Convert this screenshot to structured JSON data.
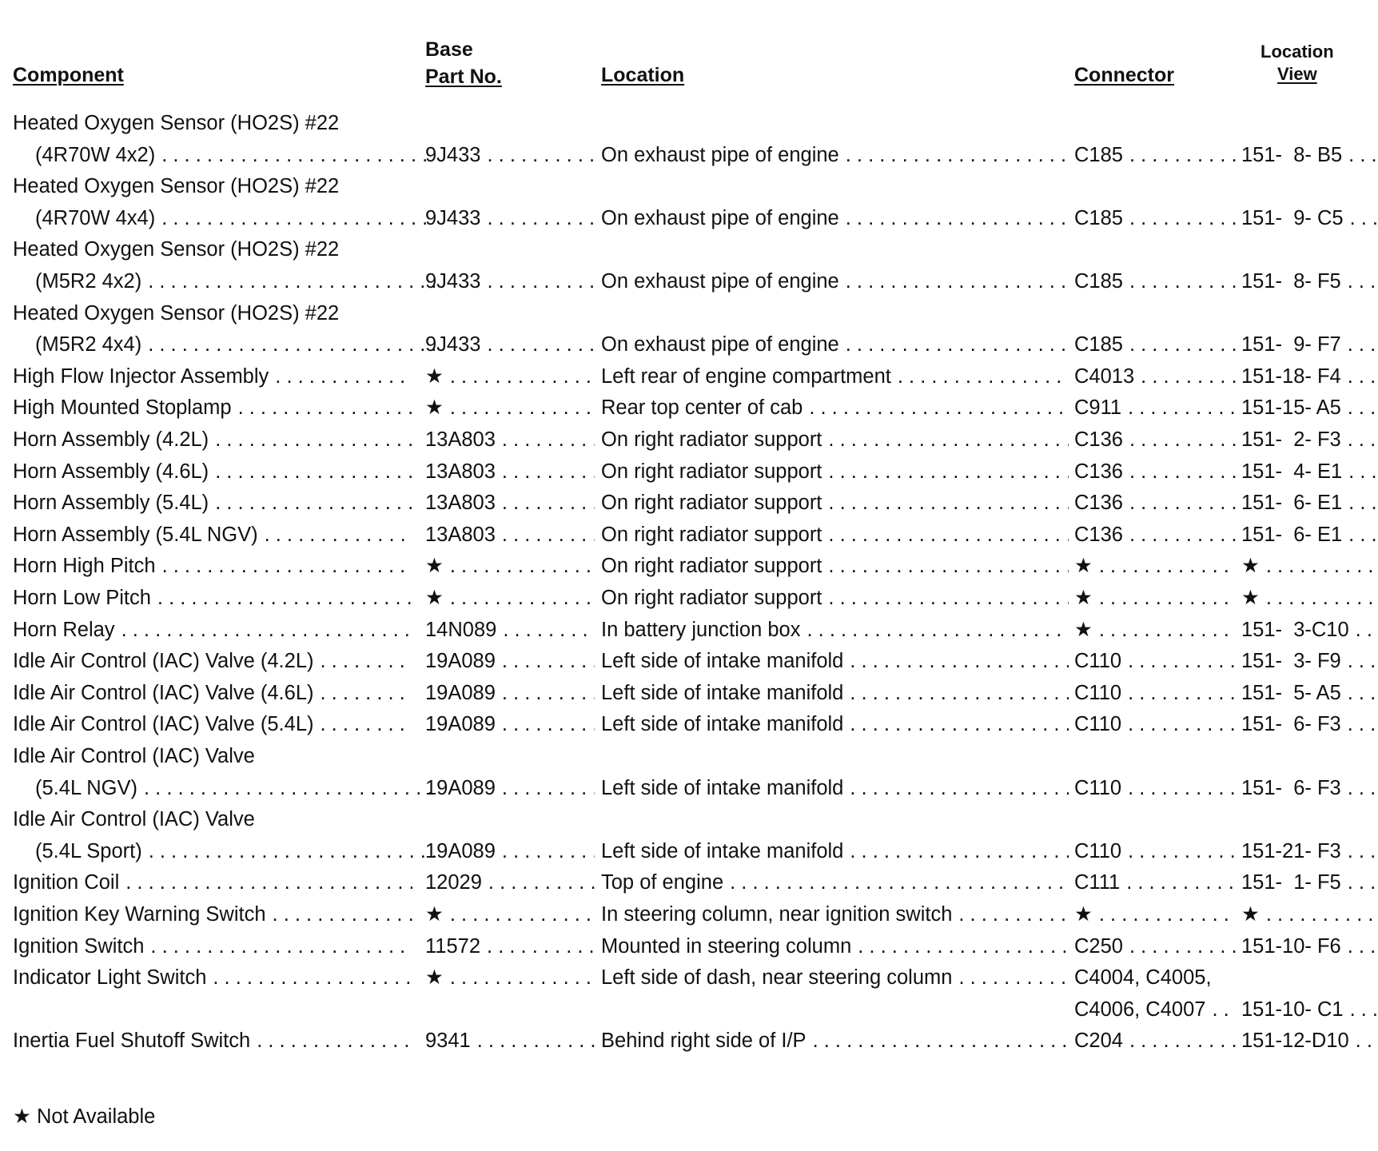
{
  "header": {
    "component": "Component",
    "part_top": "Base",
    "part_bottom": "Part No.",
    "location": "Location",
    "connector": "Connector",
    "view_top": "Location",
    "view_bottom": "View"
  },
  "entries": [
    {
      "component": "Heated Oxygen Sensor (HO2S) #22",
      "component_line2": "(4R70W 4x2)",
      "part": "9J433",
      "location": "On exhaust pipe of engine",
      "connector": "C185",
      "view": "151-  8- B5"
    },
    {
      "component": "Heated Oxygen Sensor (HO2S) #22",
      "component_line2": "(4R70W 4x4)",
      "part": "9J433",
      "location": "On exhaust pipe of engine",
      "connector": "C185",
      "view": "151-  9- C5"
    },
    {
      "component": "Heated Oxygen Sensor (HO2S) #22",
      "component_line2": "(M5R2 4x2)",
      "part": "9J433",
      "location": "On exhaust pipe of engine",
      "connector": "C185",
      "view": "151-  8- F5"
    },
    {
      "component": "Heated Oxygen Sensor (HO2S) #22",
      "component_line2": "(M5R2 4x4)",
      "part": "9J433",
      "location": "On exhaust pipe of engine",
      "connector": "C185",
      "view": "151-  9- F7"
    },
    {
      "component": "High Flow Injector Assembly",
      "part": "★",
      "location": "Left rear of engine compartment",
      "connector": "C4013",
      "view": "151-18- F4"
    },
    {
      "component": "High Mounted Stoplamp",
      "part": "★",
      "location": "Rear top center of cab",
      "connector": "C911",
      "view": "151-15- A5"
    },
    {
      "component": "Horn Assembly (4.2L)",
      "part": "13A803",
      "location": "On right radiator support",
      "connector": "C136",
      "view": "151-  2- F3"
    },
    {
      "component": "Horn Assembly (4.6L)",
      "part": "13A803",
      "location": "On right radiator support",
      "connector": "C136",
      "view": "151-  4- E1"
    },
    {
      "component": "Horn Assembly (5.4L)",
      "part": "13A803",
      "location": "On right radiator support",
      "connector": "C136",
      "view": "151-  6- E1"
    },
    {
      "component": "Horn Assembly (5.4L NGV)",
      "part": "13A803",
      "location": "On right radiator support",
      "connector": "C136",
      "view": "151-  6- E1"
    },
    {
      "component": "Horn High Pitch",
      "part": "★",
      "location": "On right radiator support",
      "connector": "★",
      "view": "★"
    },
    {
      "component": "Horn Low Pitch",
      "part": "★",
      "location": "On right radiator support",
      "connector": "★",
      "view": "★"
    },
    {
      "component": "Horn Relay",
      "part": "14N089",
      "location": "In battery junction box",
      "connector": "★",
      "view": "151-  3-C10"
    },
    {
      "component": "Idle Air Control (IAC) Valve (4.2L)",
      "part": "19A089",
      "location": "Left side of intake manifold",
      "connector": "C110",
      "view": "151-  3- F9"
    },
    {
      "component": "Idle Air Control (IAC) Valve (4.6L)",
      "part": "19A089",
      "location": "Left side of intake manifold",
      "connector": "C110",
      "view": "151-  5- A5"
    },
    {
      "component": "Idle Air Control (IAC) Valve (5.4L)",
      "part": "19A089",
      "location": "Left side of intake manifold",
      "connector": "C110",
      "view": "151-  6- F3"
    },
    {
      "component": "Idle Air Control (IAC) Valve",
      "component_line2": "(5.4L NGV)",
      "part": "19A089",
      "location": "Left side of intake manifold",
      "connector": "C110",
      "view": "151-  6- F3"
    },
    {
      "component": "Idle Air Control (IAC) Valve",
      "component_line2": "(5.4L Sport)",
      "part": "19A089",
      "location": "Left side of intake manifold",
      "connector": "C110",
      "view": "151-21- F3"
    },
    {
      "component": "Ignition Coil",
      "part": "12029",
      "location": "Top of engine",
      "connector": "C111",
      "view": "151-  1- F5"
    },
    {
      "component": "Ignition Key Warning Switch",
      "part": "★",
      "location": "In steering column, near ignition switch",
      "connector": "★",
      "view": "★"
    },
    {
      "component": "Ignition Switch",
      "part": "11572",
      "location": "Mounted in steering column",
      "connector": "C250",
      "view": "151-10- F6"
    },
    {
      "component": "Indicator Light Switch",
      "part": "★",
      "location": "Left side of dash, near steering column",
      "connector": "C4004, C4005,",
      "connector_line2": "C4006, C4007",
      "view": "151-10- C1"
    },
    {
      "component": "Inertia Fuel Shutoff Switch",
      "part": "9341",
      "location": "Behind right side of I/P",
      "connector": "C204",
      "view": "151-12-D10"
    }
  ],
  "footnote": "★  Not Available"
}
